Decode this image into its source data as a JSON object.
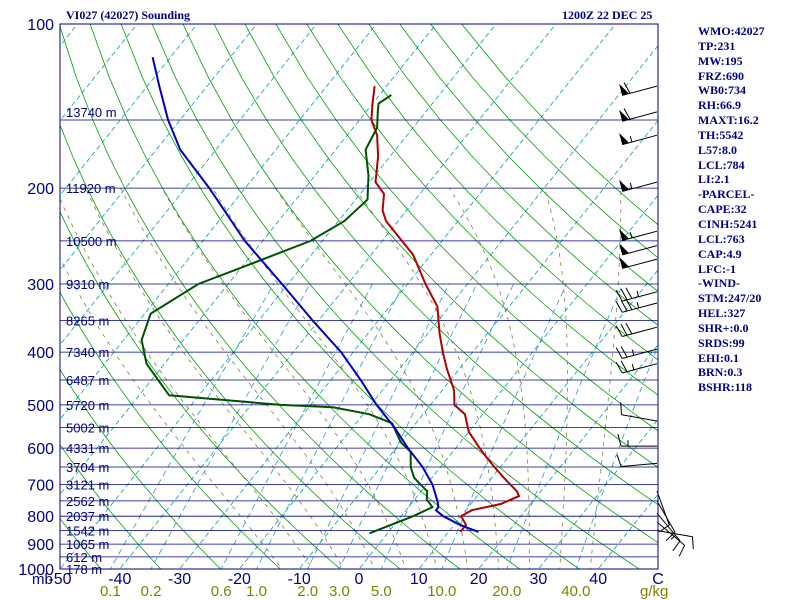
{
  "header": {
    "station": "VI027 (42027) Sounding",
    "time": "1200Z 22 DEC 25"
  },
  "colors": {
    "frame": "#000080",
    "isobar": "#000080",
    "isotherm": "#00a0a0",
    "dry_adiabat": "#00a000",
    "moist_adiabat": "#808040",
    "mixing_ratio": "#40a0d0",
    "temperature": "#b00000",
    "dewpoint": "#005000",
    "parcel": "#0000c0",
    "wind": "#000000",
    "labels": "#000080",
    "mixing_labels": "#808000"
  },
  "stats": [
    "WMO:42027",
    "TP:231",
    "MW:195",
    "FRZ:690",
    "WB0:734",
    "RH:66.9",
    "MAXT:16.2",
    "TH:5542",
    "L57:8.0",
    "LCL:784",
    "LI:2.1",
    "-PARCEL-",
    "CAPE:32",
    "CINH:5241",
    "LCL:763",
    "CAP:4.9",
    "LFC:-1",
    "-WIND-",
    "STM:247/20",
    "HEL:327",
    "SHR+:0.0",
    "SRDS:99",
    "EHI:0.1",
    "BRN:0.3",
    "BSHR:118"
  ],
  "chart_data": {
    "type": "line",
    "title": "VI027 (42027) Sounding",
    "valid_time": "1200Z 22 DEC 25",
    "xlabel": "",
    "ylabel": "mb",
    "y_scale": "log-pressure",
    "pressure_range_mb": [
      1000,
      100
    ],
    "temperature_range_c": [
      -50,
      50
    ],
    "pressure_ticks_mb": [
      100,
      200,
      300,
      400,
      500,
      600,
      700,
      800,
      900,
      1000
    ],
    "temperature_ticks": [
      "-50",
      "-40",
      "-30",
      "-20",
      "-10",
      "0",
      "10",
      "20",
      "30",
      "40",
      "C"
    ],
    "mixing_ratio_labels_gkg": [
      0.1,
      0.2,
      0.6,
      1.0,
      2.0,
      3.0,
      5.0,
      10.0,
      20.0,
      40.0
    ],
    "mixing_ratio_unit": "g/kg",
    "height_labels": [
      {
        "p": 145,
        "label": "13740 m"
      },
      {
        "p": 200,
        "label": "11920 m"
      },
      {
        "p": 250,
        "label": "10500 m"
      },
      {
        "p": 300,
        "label": "9310 m"
      },
      {
        "p": 350,
        "label": "8265 m"
      },
      {
        "p": 400,
        "label": "7340 m"
      },
      {
        "p": 450,
        "label": "6487 m"
      },
      {
        "p": 500,
        "label": "5720 m"
      },
      {
        "p": 550,
        "label": "5002 m"
      },
      {
        "p": 600,
        "label": "4331 m"
      },
      {
        "p": 650,
        "label": "3704 m"
      },
      {
        "p": 700,
        "label": "3121 m"
      },
      {
        "p": 750,
        "label": "2562 m"
      },
      {
        "p": 800,
        "label": "2037 m"
      },
      {
        "p": 850,
        "label": "1542 m"
      },
      {
        "p": 900,
        "label": "1065 m"
      },
      {
        "p": 950,
        "label": "612 m"
      },
      {
        "p": 1000,
        "label": "178 m"
      }
    ],
    "series": [
      {
        "key": "temperature",
        "points": [
          [
            855,
            12
          ],
          [
            830,
            12
          ],
          [
            800,
            10
          ],
          [
            780,
            11
          ],
          [
            760,
            15
          ],
          [
            735,
            17
          ],
          [
            720,
            16
          ],
          [
            700,
            14
          ],
          [
            680,
            12
          ],
          [
            650,
            9
          ],
          [
            620,
            6
          ],
          [
            600,
            4
          ],
          [
            560,
            0
          ],
          [
            520,
            -3
          ],
          [
            500,
            -6
          ],
          [
            470,
            -8
          ],
          [
            430,
            -12
          ],
          [
            400,
            -15
          ],
          [
            370,
            -18
          ],
          [
            330,
            -22
          ],
          [
            300,
            -27
          ],
          [
            265,
            -33
          ],
          [
            245,
            -38
          ],
          [
            230,
            -42
          ],
          [
            220,
            -44
          ],
          [
            205,
            -46
          ],
          [
            195,
            -49
          ],
          [
            175,
            -52
          ],
          [
            160,
            -55
          ],
          [
            150,
            -58
          ],
          [
            140,
            -60
          ],
          [
            130,
            -62
          ]
        ]
      },
      {
        "key": "dewpoint",
        "points": [
          [
            860,
            -3
          ],
          [
            835,
            -1
          ],
          [
            800,
            2
          ],
          [
            770,
            4
          ],
          [
            745,
            2
          ],
          [
            720,
            1
          ],
          [
            700,
            -1
          ],
          [
            680,
            -3
          ],
          [
            650,
            -5
          ],
          [
            610,
            -7
          ],
          [
            585,
            -10
          ],
          [
            540,
            -14
          ],
          [
            520,
            -19
          ],
          [
            505,
            -26
          ],
          [
            500,
            -35
          ],
          [
            480,
            -55
          ],
          [
            420,
            -63
          ],
          [
            380,
            -67
          ],
          [
            340,
            -69
          ],
          [
            300,
            -65
          ],
          [
            280,
            -60
          ],
          [
            250,
            -52
          ],
          [
            230,
            -49
          ],
          [
            210,
            -48
          ],
          [
            190,
            -51
          ],
          [
            170,
            -55
          ],
          [
            155,
            -56
          ],
          [
            145,
            -58
          ],
          [
            140,
            -59
          ],
          [
            135,
            -58
          ]
        ]
      },
      {
        "key": "parcel",
        "points": [
          [
            855,
            15
          ],
          [
            830,
            11
          ],
          [
            800,
            7
          ],
          [
            780,
            5
          ],
          [
            770,
            5
          ],
          [
            750,
            4
          ],
          [
            700,
            1
          ],
          [
            650,
            -3
          ],
          [
            600,
            -8
          ],
          [
            550,
            -13
          ],
          [
            500,
            -19
          ],
          [
            450,
            -25
          ],
          [
            400,
            -32
          ],
          [
            350,
            -41
          ],
          [
            300,
            -51
          ],
          [
            250,
            -63
          ],
          [
            200,
            -76
          ],
          [
            170,
            -86
          ],
          [
            150,
            -92
          ],
          [
            130,
            -98
          ],
          [
            115,
            -103
          ]
        ]
      }
    ],
    "wind_barbs": [
      {
        "p": 130,
        "dir": 255,
        "spd": 60
      },
      {
        "p": 145,
        "dir": 255,
        "spd": 60
      },
      {
        "p": 160,
        "dir": 255,
        "spd": 55
      },
      {
        "p": 195,
        "dir": 255,
        "spd": 55
      },
      {
        "p": 240,
        "dir": 255,
        "spd": 55
      },
      {
        "p": 255,
        "dir": 255,
        "spd": 50
      },
      {
        "p": 270,
        "dir": 255,
        "spd": 50
      },
      {
        "p": 310,
        "dir": 255,
        "spd": 35
      },
      {
        "p": 325,
        "dir": 255,
        "spd": 35
      },
      {
        "p": 360,
        "dir": 255,
        "spd": 30
      },
      {
        "p": 395,
        "dir": 255,
        "spd": 25
      },
      {
        "p": 420,
        "dir": 255,
        "spd": 25
      },
      {
        "p": 535,
        "dir": 280,
        "spd": 10
      },
      {
        "p": 595,
        "dir": 270,
        "spd": 15
      },
      {
        "p": 640,
        "dir": 265,
        "spd": 10
      },
      {
        "p": 720,
        "dir": 160,
        "spd": 10
      },
      {
        "p": 750,
        "dir": 150,
        "spd": 10
      },
      {
        "p": 790,
        "dir": 140,
        "spd": 15
      },
      {
        "p": 820,
        "dir": 130,
        "spd": 10
      },
      {
        "p": 850,
        "dir": 100,
        "spd": 10
      }
    ]
  }
}
